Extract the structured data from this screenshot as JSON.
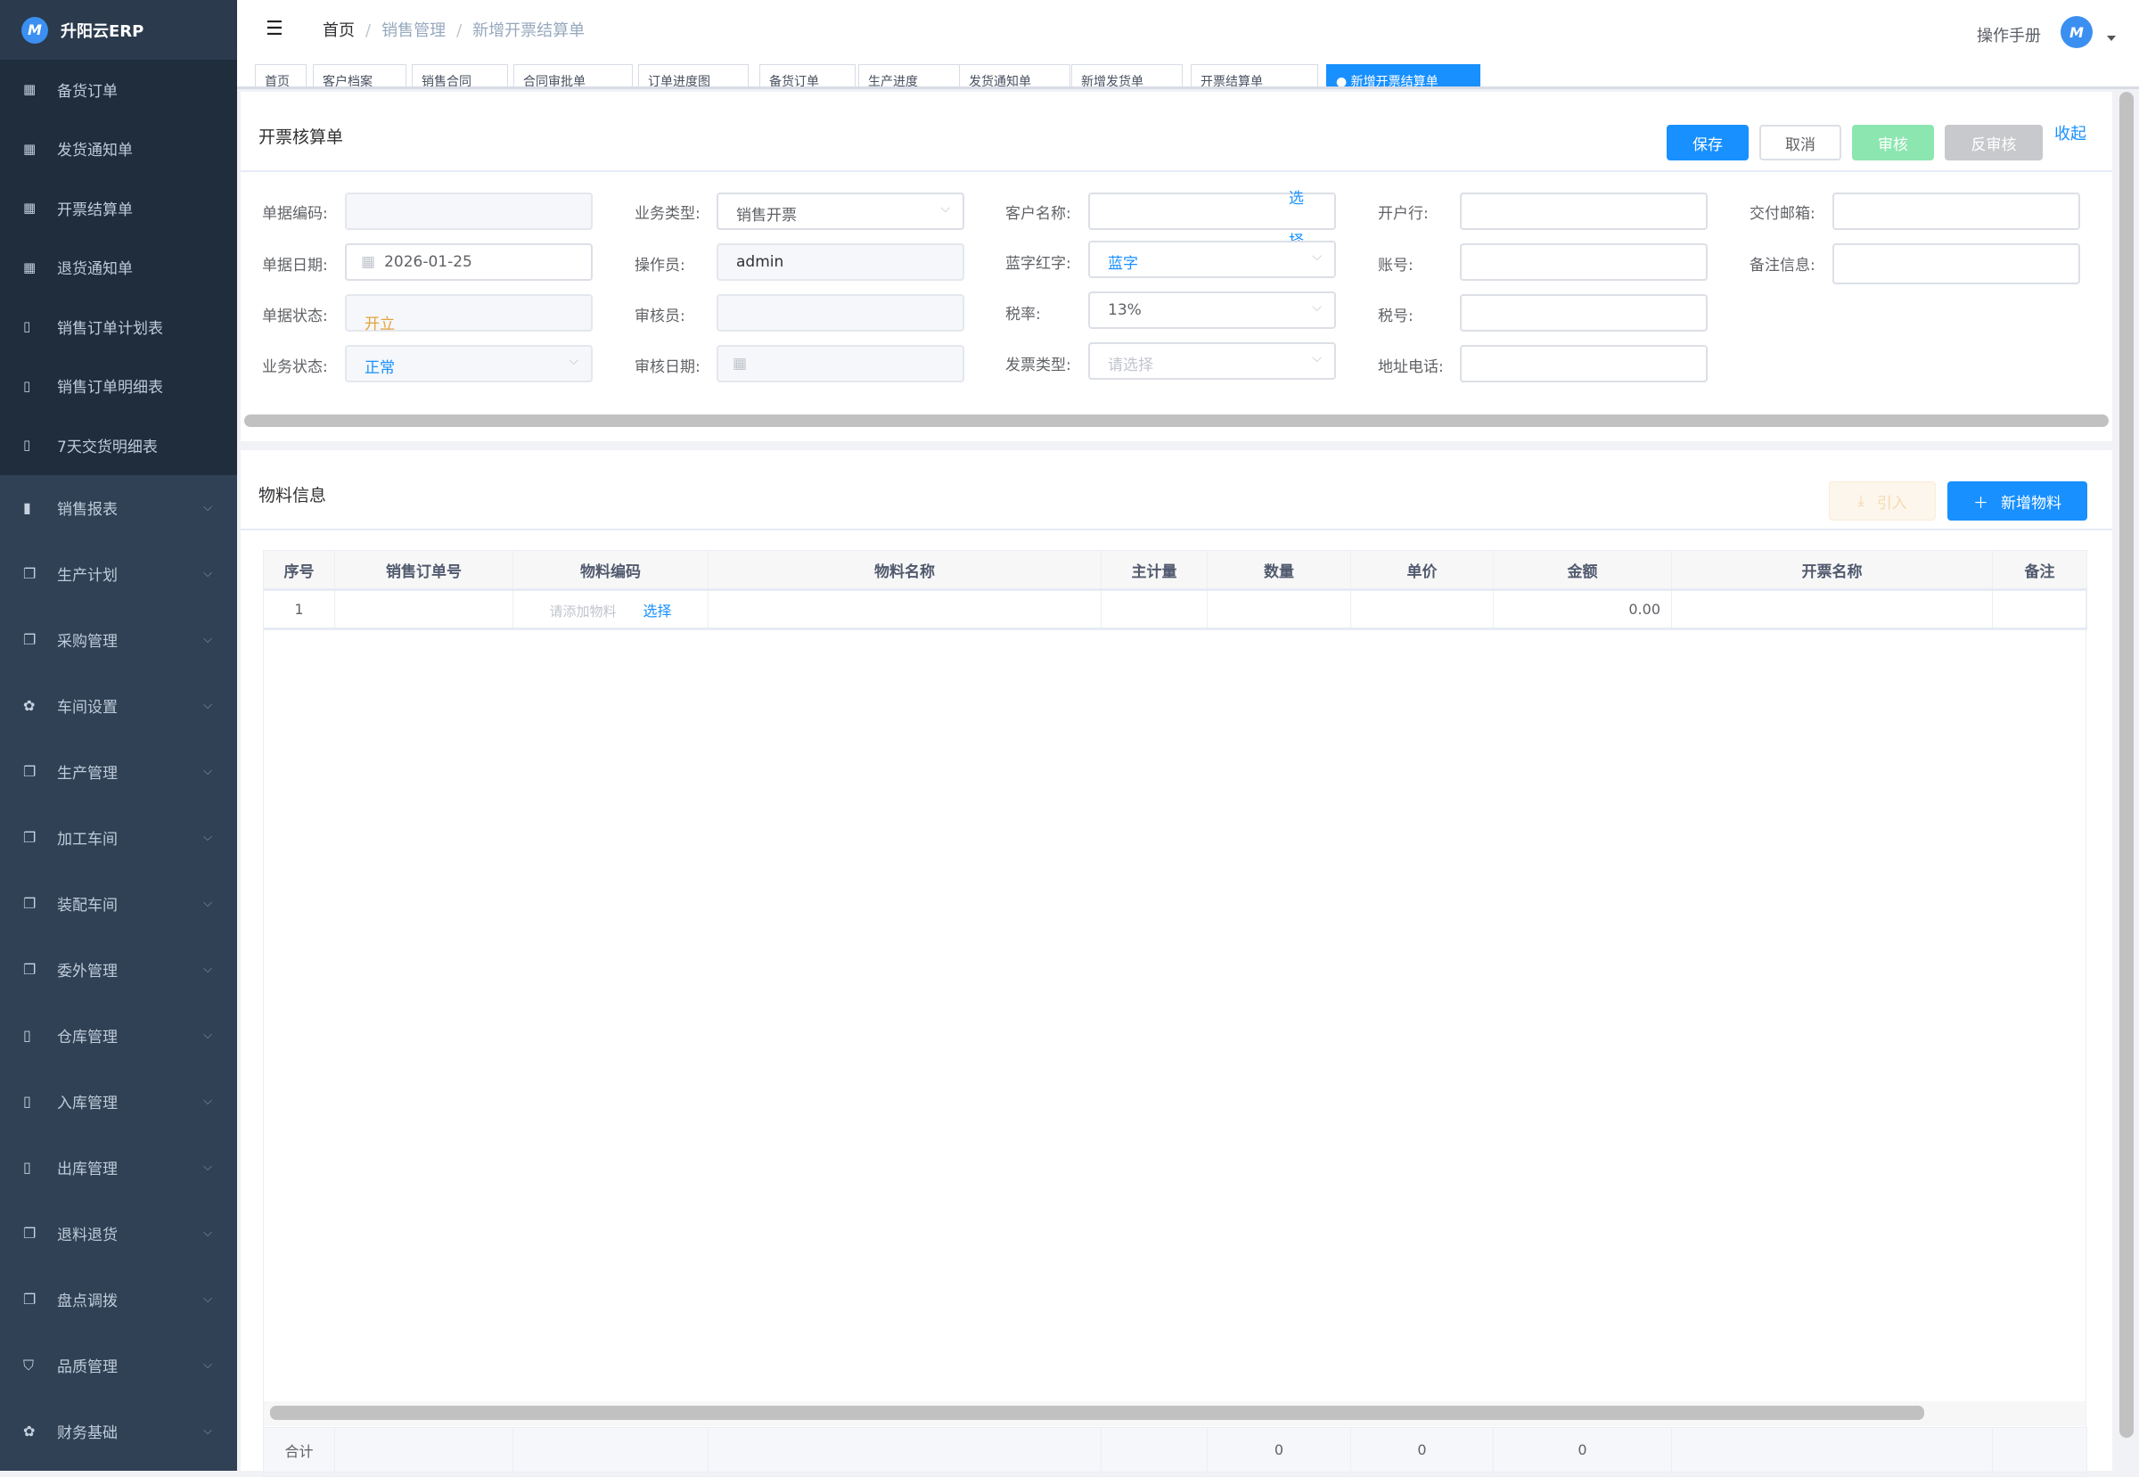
{
  "app": {
    "name": "升阳云ERP",
    "logo_icon": "M-logo"
  },
  "sidebar": {
    "sub_items": [
      {
        "label": "备货订单",
        "icon": "table-icon"
      },
      {
        "label": "发货通知单",
        "icon": "table-icon"
      },
      {
        "label": "开票结算单",
        "icon": "table-icon"
      },
      {
        "label": "退货通知单",
        "icon": "table-icon"
      },
      {
        "label": "销售订单计划表",
        "icon": "book-icon"
      },
      {
        "label": "销售订单明细表",
        "icon": "book-icon"
      },
      {
        "label": "7天交货明细表",
        "icon": "book-icon"
      }
    ],
    "menus": [
      {
        "label": "销售报表",
        "icon": "bar-chart-icon"
      },
      {
        "label": "生产计划",
        "icon": "documents-icon"
      },
      {
        "label": "采购管理",
        "icon": "documents-icon"
      },
      {
        "label": "车间设置",
        "icon": "gear-icon"
      },
      {
        "label": "生产管理",
        "icon": "documents-icon"
      },
      {
        "label": "加工车间",
        "icon": "documents-icon"
      },
      {
        "label": "装配车间",
        "icon": "documents-icon"
      },
      {
        "label": "委外管理",
        "icon": "documents-icon"
      },
      {
        "label": "仓库管理",
        "icon": "book-icon"
      },
      {
        "label": "入库管理",
        "icon": "book-icon"
      },
      {
        "label": "出库管理",
        "icon": "book-icon"
      },
      {
        "label": "退料退货",
        "icon": "documents-icon"
      },
      {
        "label": "盘点调拨",
        "icon": "documents-icon"
      },
      {
        "label": "品质管理",
        "icon": "shield-icon"
      },
      {
        "label": "财务基础",
        "icon": "gear-icon"
      }
    ]
  },
  "header": {
    "breadcrumb": [
      "首页",
      "销售管理",
      "新增开票结算单"
    ],
    "manual": "操作手册"
  },
  "tabs": [
    "首页",
    "客户档案",
    "销售合同",
    "合同审批单",
    "订单进度图",
    "备货订单",
    "生产进度",
    "发货通知单",
    "新增发货单",
    "开票结算单",
    "新增开票结算单"
  ],
  "form": {
    "title": "开票核算单",
    "buttons": {
      "save": "保存",
      "cancel": "取消",
      "audit": "审核",
      "unaudit": "反审核",
      "collapse": "收起"
    },
    "fields": {
      "doc_code": {
        "label": "单据编码:",
        "value": ""
      },
      "doc_date": {
        "label": "单据日期:",
        "value": "2026-01-25"
      },
      "doc_status": {
        "label": "单据状态:",
        "value": "开立"
      },
      "biz_status": {
        "label": "业务状态:",
        "value": "正常"
      },
      "biz_type": {
        "label": "业务类型:",
        "value": "销售开票"
      },
      "operator": {
        "label": "操作员:",
        "value": "admin"
      },
      "auditor": {
        "label": "审核员:",
        "value": ""
      },
      "audit_date": {
        "label": "审核日期:",
        "value": ""
      },
      "customer": {
        "label": "客户名称:",
        "value": "",
        "select": "选择"
      },
      "blue_red": {
        "label": "蓝字红字:",
        "value": "蓝字"
      },
      "tax_rate": {
        "label": "税率:",
        "value": "13%"
      },
      "invoice_type": {
        "label": "发票类型:",
        "placeholder": "请选择"
      },
      "bank": {
        "label": "开户行:",
        "value": ""
      },
      "account": {
        "label": "账号:",
        "value": ""
      },
      "tax_no": {
        "label": "税号:",
        "value": ""
      },
      "address_phone": {
        "label": "地址电话:",
        "value": ""
      },
      "email": {
        "label": "交付邮箱:",
        "value": ""
      },
      "remark": {
        "label": "备注信息:",
        "value": ""
      }
    }
  },
  "materials": {
    "title": "物料信息",
    "import": "引入",
    "add": "新增物料",
    "columns": [
      "序号",
      "销售订单号",
      "物料编码",
      "物料名称",
      "主计量",
      "数量",
      "单价",
      "金额",
      "开票名称",
      "备注"
    ],
    "rows": [
      {
        "index": "1",
        "order_no": "",
        "code_placeholder": "请添加物料",
        "select": "选择",
        "name": "",
        "unit": "",
        "qty": "",
        "price": "",
        "amount": "0.00",
        "invoice_name": "",
        "remark": ""
      }
    ],
    "footer": {
      "label": "合计",
      "qty": "0",
      "price": "0",
      "amount": "0"
    }
  },
  "colors": {
    "primary": "#1890ff",
    "sidebar": "#304156",
    "audit": "#8ce6b0",
    "warning": "#e6a23c"
  }
}
